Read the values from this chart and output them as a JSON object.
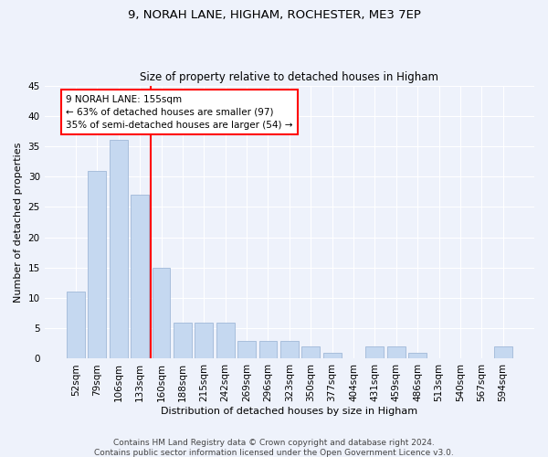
{
  "title1": "9, NORAH LANE, HIGHAM, ROCHESTER, ME3 7EP",
  "title2": "Size of property relative to detached houses in Higham",
  "xlabel": "Distribution of detached houses by size in Higham",
  "ylabel": "Number of detached properties",
  "categories": [
    "52sqm",
    "79sqm",
    "106sqm",
    "133sqm",
    "160sqm",
    "188sqm",
    "215sqm",
    "242sqm",
    "269sqm",
    "296sqm",
    "323sqm",
    "350sqm",
    "377sqm",
    "404sqm",
    "431sqm",
    "459sqm",
    "486sqm",
    "513sqm",
    "540sqm",
    "567sqm",
    "594sqm"
  ],
  "values": [
    11,
    31,
    36,
    27,
    15,
    6,
    6,
    6,
    3,
    3,
    3,
    2,
    1,
    0,
    2,
    2,
    1,
    0,
    0,
    0,
    2
  ],
  "bar_color": "#c5d8f0",
  "bar_edge_color": "#a0b8d8",
  "vline_color": "red",
  "annotation_line1": "9 NORAH LANE: 155sqm",
  "annotation_line2": "← 63% of detached houses are smaller (97)",
  "annotation_line3": "35% of semi-detached houses are larger (54) →",
  "annotation_box_color": "white",
  "annotation_box_edge_color": "red",
  "ylim": [
    0,
    45
  ],
  "yticks": [
    0,
    5,
    10,
    15,
    20,
    25,
    30,
    35,
    40,
    45
  ],
  "footer_line1": "Contains HM Land Registry data © Crown copyright and database right 2024.",
  "footer_line2": "Contains public sector information licensed under the Open Government Licence v3.0.",
  "bg_color": "#eef2fb",
  "grid_color": "white",
  "title1_fontsize": 9.5,
  "title2_fontsize": 8.5,
  "xlabel_fontsize": 8,
  "ylabel_fontsize": 8,
  "tick_fontsize": 7.5,
  "annotation_fontsize": 7.5,
  "footer_fontsize": 6.5
}
